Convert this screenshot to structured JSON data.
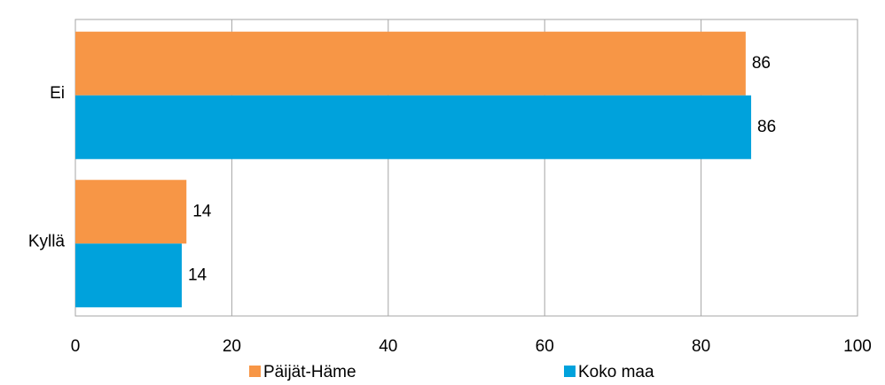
{
  "chart_data": {
    "type": "hbar",
    "categories": [
      "Ei",
      "Kyllä"
    ],
    "series": [
      {
        "name": "Päijät-Häme",
        "color": "#f79646",
        "values": [
          85.7,
          14.2
        ],
        "value_labels": [
          "86",
          "14"
        ]
      },
      {
        "name": "Koko maa",
        "color": "#00a2dc",
        "values": [
          86.4,
          13.6
        ],
        "value_labels": [
          "86",
          "14"
        ]
      }
    ],
    "xlim": [
      0,
      100
    ],
    "xticks": [
      0,
      20,
      40,
      60,
      80,
      100
    ],
    "grid": true,
    "legend": "bottom"
  }
}
